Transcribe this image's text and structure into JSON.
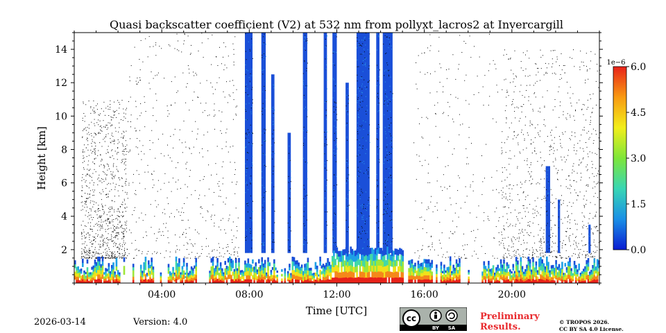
{
  "chart_data": {
    "type": "heatmap",
    "title": "Quasi backscatter coefficient (V2) at 532 nm from pollyxt_lacros2 at Invercargill",
    "xlabel": "Time [UTC]",
    "ylabel": "Height [km]",
    "xlim": [
      0,
      24
    ],
    "ylim": [
      0,
      15
    ],
    "x_ticks": [
      {
        "value": 4,
        "label": "04:00"
      },
      {
        "value": 8,
        "label": "08:00"
      },
      {
        "value": 12,
        "label": "12:00"
      },
      {
        "value": 16,
        "label": "16:00"
      },
      {
        "value": 20,
        "label": "20:00"
      }
    ],
    "y_ticks": [
      {
        "value": 2,
        "label": "2"
      },
      {
        "value": 4,
        "label": "4"
      },
      {
        "value": 6,
        "label": "6"
      },
      {
        "value": 8,
        "label": "8"
      },
      {
        "value": 10,
        "label": "10"
      },
      {
        "value": 12,
        "label": "12"
      },
      {
        "value": 14,
        "label": "14"
      }
    ],
    "colorbar": {
      "min": 0,
      "max": 6.0,
      "exponent_label": "1e−6",
      "ticks": [
        "0.0",
        "1.5",
        "3.0",
        "4.5",
        "6.0"
      ],
      "tick_values": [
        0,
        1.5,
        3.0,
        4.5,
        6.0
      ],
      "colormap": [
        "#0a1cd2",
        "#1a8fe6",
        "#38d6b4",
        "#7ee63a",
        "#f2ee1a",
        "#f89a12",
        "#e8221a"
      ]
    },
    "cloud_columns": [
      {
        "start": 7.8,
        "end": 8.15,
        "top": 15
      },
      {
        "start": 8.55,
        "end": 8.75,
        "top": 15
      },
      {
        "start": 9.0,
        "end": 9.15,
        "top": 12.5
      },
      {
        "start": 9.75,
        "end": 9.9,
        "top": 9
      },
      {
        "start": 10.45,
        "end": 10.65,
        "top": 15
      },
      {
        "start": 11.4,
        "end": 11.55,
        "top": 15
      },
      {
        "start": 11.8,
        "end": 12.0,
        "top": 15
      },
      {
        "start": 12.4,
        "end": 12.55,
        "top": 12
      },
      {
        "start": 12.9,
        "end": 13.5,
        "top": 15
      },
      {
        "start": 13.8,
        "end": 13.95,
        "top": 15
      },
      {
        "start": 14.1,
        "end": 14.55,
        "top": 15
      },
      {
        "start": 21.55,
        "end": 21.75,
        "top": 7
      },
      {
        "start": 22.1,
        "end": 22.2,
        "top": 5
      },
      {
        "start": 23.5,
        "end": 23.6,
        "top": 3.5
      }
    ]
  },
  "footer": {
    "date": "2026-03-14",
    "version": "Version: 4.0",
    "preliminary": "Preliminary Results.",
    "copyright_line1": "© TROPOS 2026.",
    "copyright_line2": "CC BY SA 4.0 License.",
    "cc_label": "cc",
    "by_label": "BY",
    "sa_label": "SA"
  }
}
